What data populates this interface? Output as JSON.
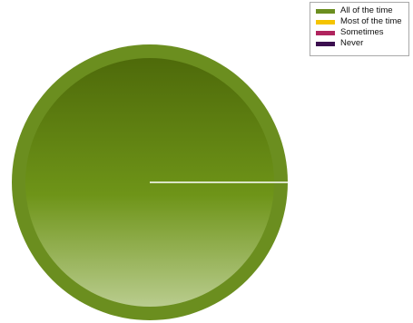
{
  "chart_data": {
    "type": "pie",
    "categories": [
      "All of the time",
      "Most of the time",
      "Sometimes",
      "Never"
    ],
    "values": [
      100,
      0,
      0,
      0
    ],
    "colors": [
      "#6b8e1f",
      "#f5c400",
      "#b0245e",
      "#3b0f4f"
    ],
    "title": "",
    "legend_position": "top-right"
  }
}
